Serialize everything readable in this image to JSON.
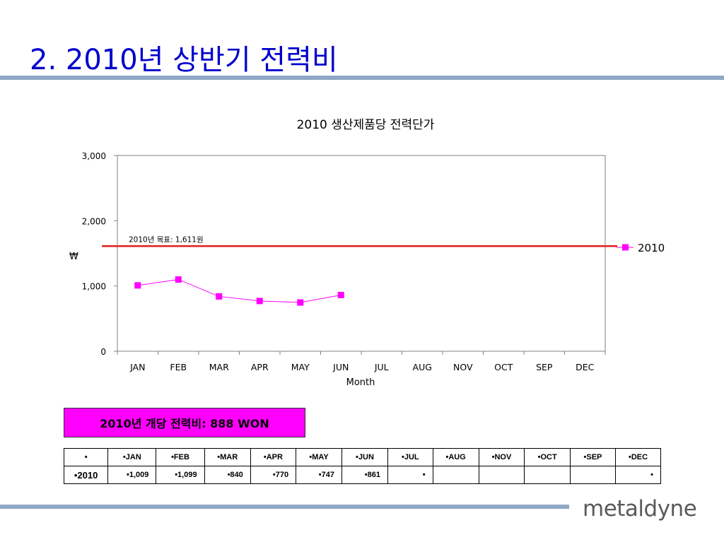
{
  "slide": {
    "title": "2. 2010년 상반기 전력비"
  },
  "colors": {
    "title": "#0000cc",
    "series": "#ff00ff",
    "target_line": "#e02020",
    "rule": "#8fa7c4",
    "summary_bg": "#ff00ff",
    "logo": "#5a5a5a"
  },
  "chart_data": {
    "type": "line",
    "title": "2010 생산제품당 전력단가",
    "xlabel": "Month",
    "ylabel": "₩",
    "categories": [
      "JAN",
      "FEB",
      "MAR",
      "APR",
      "MAY",
      "JUN",
      "JUL",
      "AUG",
      "NOV",
      "OCT",
      "SEP",
      "DEC"
    ],
    "ylim": [
      0,
      3000
    ],
    "yticks": [
      {
        "value": 0,
        "label": "0"
      },
      {
        "value": 1000,
        "label": "1,000"
      },
      {
        "value": 2000,
        "label": "2,000"
      },
      {
        "value": 3000,
        "label": "3,000"
      }
    ],
    "series": [
      {
        "name": "2010",
        "values": [
          1009,
          1099,
          840,
          770,
          747,
          861,
          null,
          null,
          null,
          null,
          null,
          null
        ]
      }
    ],
    "target": {
      "value": 1611,
      "label": "2010년 목표: 1,611원"
    },
    "legend_position": "right",
    "grid": false
  },
  "summary": {
    "text": "2010년 개당 전력비: 888 WON"
  },
  "table": {
    "header": [
      "•",
      "•JAN",
      "•FEB",
      "•MAR",
      "•APR",
      "•MAY",
      "•JUN",
      "•JUL",
      "•AUG",
      "•NOV",
      "•OCT",
      "•SEP",
      "•DEC"
    ],
    "rows": [
      [
        "•2010",
        "•1,009",
        "•1,099",
        "•840",
        "•770",
        "•747",
        "•861",
        "•",
        "",
        "",
        "",
        "",
        "•"
      ]
    ]
  },
  "logo": {
    "text": "metaldyne"
  }
}
